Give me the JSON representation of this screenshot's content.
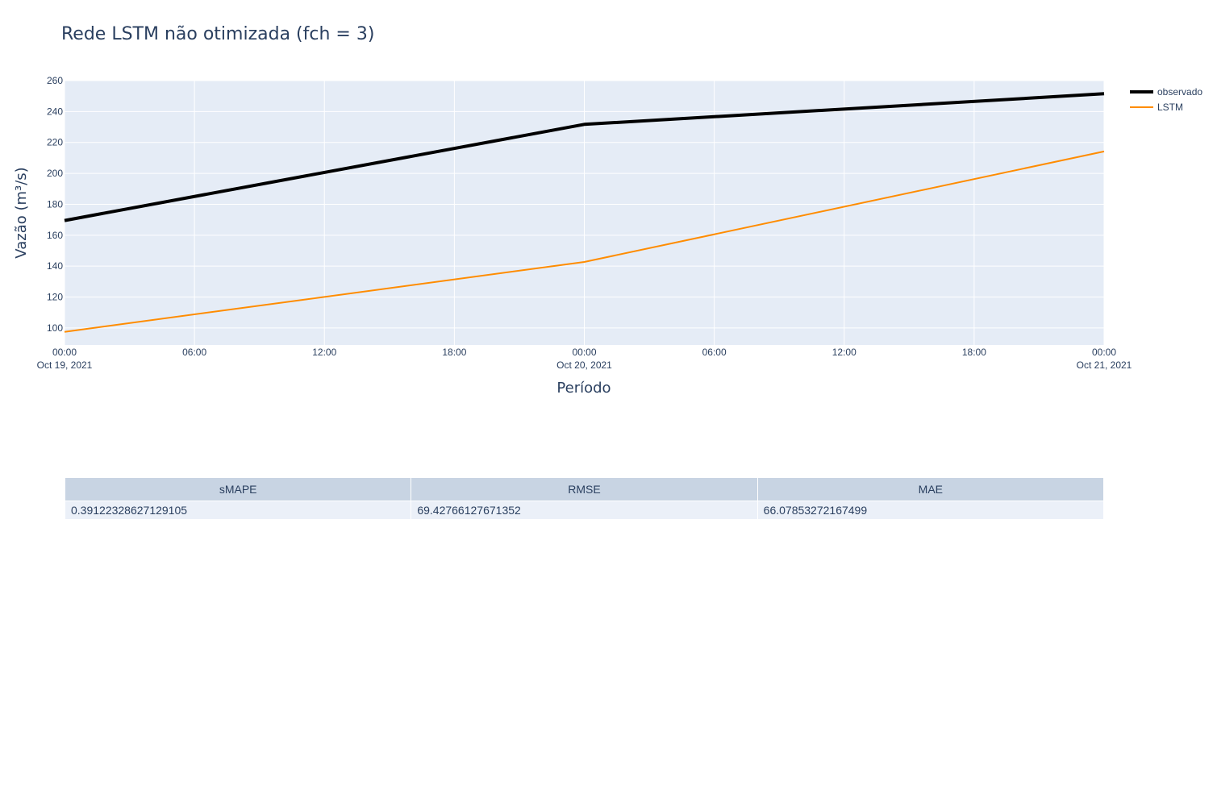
{
  "chart_data": {
    "type": "line",
    "title": "Rede LSTM não otimizada (fch = 3)",
    "xlabel": "Período",
    "ylabel": "Vazão (m³/s)",
    "x": [
      "2021-10-19T00:00",
      "2021-10-20T00:00",
      "2021-10-21T00:00"
    ],
    "xlim": [
      "2021-10-19T00:00",
      "2021-10-21T00:00"
    ],
    "ylim": [
      89,
      260
    ],
    "yticks": [
      100,
      120,
      140,
      160,
      180,
      200,
      220,
      240,
      260
    ],
    "xticks": [
      {
        "top": "00:00",
        "bottom": "Oct 19, 2021"
      },
      {
        "top": "06:00",
        "bottom": ""
      },
      {
        "top": "12:00",
        "bottom": ""
      },
      {
        "top": "18:00",
        "bottom": ""
      },
      {
        "top": "00:00",
        "bottom": "Oct 20, 2021"
      },
      {
        "top": "06:00",
        "bottom": ""
      },
      {
        "top": "12:00",
        "bottom": ""
      },
      {
        "top": "18:00",
        "bottom": ""
      },
      {
        "top": "00:00",
        "bottom": "Oct 21, 2021"
      }
    ],
    "series": [
      {
        "name": "observado",
        "values": [
          169.5,
          231.7,
          251.5
        ],
        "color": "#000000"
      },
      {
        "name": "LSTM",
        "values": [
          97.5,
          142.7,
          214.2
        ],
        "color": "#ff8c00"
      }
    ],
    "grid": true,
    "legend": "top-right"
  },
  "metrics_table": {
    "headers": [
      "sMAPE",
      "RMSE",
      "MAE"
    ],
    "rows": [
      [
        "0.39122328627129105",
        "69.42766127671352",
        "66.07853272167499"
      ]
    ]
  }
}
